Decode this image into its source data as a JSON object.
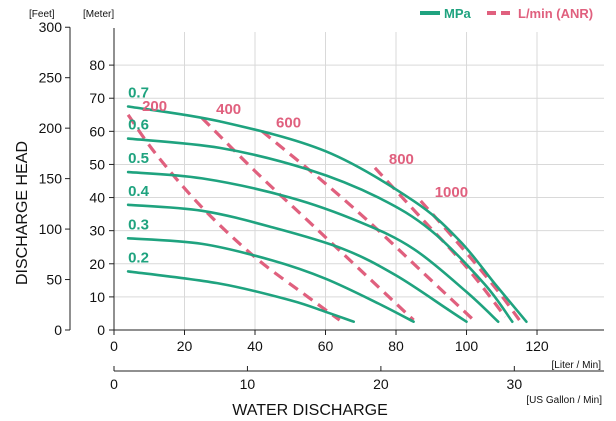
{
  "chart_data": {
    "type": "line",
    "xlabel": "WATER DISCHARGE",
    "ylabel": "DISCHARGE HEAD",
    "x_primary": {
      "unit": "[Liter / Min]",
      "ticks": [
        0,
        20,
        40,
        60,
        80,
        100,
        120
      ],
      "lim": [
        0,
        139
      ]
    },
    "x_secondary": {
      "unit": "[US Gallon / Min]",
      "ticks": [
        0,
        10,
        20,
        30
      ]
    },
    "y_meter": {
      "unit": "[Meter]",
      "ticks": [
        0,
        10,
        20,
        30,
        40,
        50,
        60,
        70,
        80
      ],
      "lim": [
        0,
        90
      ]
    },
    "y_feet": {
      "unit": "[Feet]",
      "ticks": [
        0,
        50,
        100,
        150,
        200,
        250,
        300
      ]
    },
    "grid": true,
    "legend": {
      "position": "top-right",
      "items": [
        {
          "name": "MPa",
          "style": "solid",
          "color": "#1fa37f"
        },
        {
          "name": "L/min (ANR)",
          "style": "dashed",
          "color": "#e0607e"
        }
      ]
    },
    "colors": {
      "pressure": "#1fa37f",
      "air": "#e0607e"
    },
    "pressure_curves": [
      {
        "label": "0.2",
        "points": [
          [
            4,
            17.7
          ],
          [
            30,
            14
          ],
          [
            50,
            9
          ],
          [
            60,
            5.5
          ],
          [
            68,
            2.5
          ]
        ]
      },
      {
        "label": "0.3",
        "points": [
          [
            4,
            27.7
          ],
          [
            25,
            26
          ],
          [
            45,
            21
          ],
          [
            60,
            15.5
          ],
          [
            75,
            8
          ],
          [
            85,
            2.5
          ]
        ]
      },
      {
        "label": "0.4",
        "points": [
          [
            4,
            37.8
          ],
          [
            25,
            36
          ],
          [
            45,
            31
          ],
          [
            65,
            24.5
          ],
          [
            80,
            16.5
          ],
          [
            95,
            6
          ],
          [
            100,
            2.5
          ]
        ]
      },
      {
        "label": "0.5",
        "points": [
          [
            4,
            47.7
          ],
          [
            25,
            45.8
          ],
          [
            50,
            40
          ],
          [
            70,
            32.5
          ],
          [
            85,
            24.5
          ],
          [
            100,
            11.5
          ],
          [
            109,
            2.5
          ]
        ]
      },
      {
        "label": "0.6",
        "points": [
          [
            4,
            57.8
          ],
          [
            30,
            55
          ],
          [
            55,
            48.5
          ],
          [
            75,
            40
          ],
          [
            90,
            30
          ],
          [
            105,
            14
          ],
          [
            113,
            2.5
          ]
        ]
      },
      {
        "label": "0.7",
        "points": [
          [
            4,
            67.5
          ],
          [
            30,
            63
          ],
          [
            60,
            54
          ],
          [
            85,
            39
          ],
          [
            98,
            27
          ],
          [
            108,
            14
          ],
          [
            117,
            2.5
          ]
        ]
      }
    ],
    "air_curves": [
      {
        "label": "200",
        "points": [
          [
            4,
            65
          ],
          [
            12,
            53
          ],
          [
            25,
            37
          ],
          [
            40,
            22
          ],
          [
            55,
            10
          ],
          [
            64,
            3
          ]
        ]
      },
      {
        "label": "400",
        "points": [
          [
            25,
            64
          ],
          [
            40,
            48
          ],
          [
            55,
            33
          ],
          [
            70,
            18
          ],
          [
            85,
            3
          ]
        ]
      },
      {
        "label": "600",
        "points": [
          [
            42,
            60
          ],
          [
            58,
            46
          ],
          [
            72,
            33
          ],
          [
            88,
            17
          ],
          [
            102,
            3
          ]
        ]
      },
      {
        "label": "800",
        "points": [
          [
            74,
            49
          ],
          [
            87,
            34
          ],
          [
            100,
            19
          ],
          [
            111,
            4
          ]
        ]
      },
      {
        "label": "1000",
        "points": [
          [
            87,
            39
          ],
          [
            97,
            27
          ],
          [
            108,
            13
          ],
          [
            115,
            3
          ]
        ]
      }
    ]
  }
}
